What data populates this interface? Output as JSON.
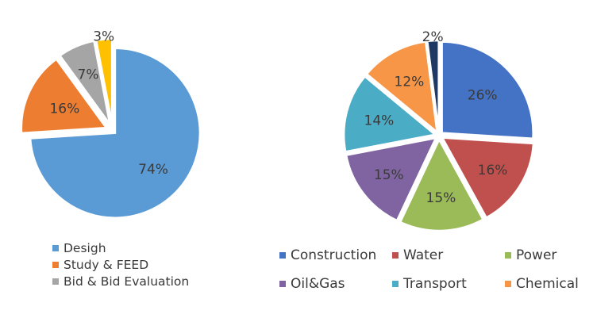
{
  "chart_data": [
    {
      "type": "pie",
      "categories": [
        "Desigh",
        "Study & FEED",
        "Bid & Bid Evaluation",
        ""
      ],
      "values": [
        74,
        16,
        7,
        3
      ],
      "labels": [
        "74%",
        "16%",
        "7%",
        "3%"
      ],
      "colors": [
        "#5B9BD5",
        "#ED7D31",
        "#A5A5A5",
        "#FFC000"
      ],
      "legend": {
        "placement": "bottom",
        "entries": [
          "Desigh",
          "Study & FEED",
          "Bid & Bid Evaluation"
        ]
      }
    },
    {
      "type": "pie",
      "categories": [
        "Construction",
        "Water",
        "Power",
        "Oil&Gas",
        "Transport",
        "Chemical",
        ""
      ],
      "values": [
        26,
        16,
        15,
        15,
        14,
        12,
        2
      ],
      "labels": [
        "26%",
        "16%",
        "15%",
        "15%",
        "14%",
        "12%",
        "2%"
      ],
      "colors": [
        "#4472C4",
        "#C0504D",
        "#9BBB59",
        "#8064A2",
        "#4BACC6",
        "#F79646",
        "#1F3864"
      ],
      "legend": {
        "placement": "bottom",
        "entries": [
          "Construction",
          "Water",
          "Power",
          "Oil&Gas",
          "Transport",
          "Chemical"
        ]
      }
    }
  ]
}
